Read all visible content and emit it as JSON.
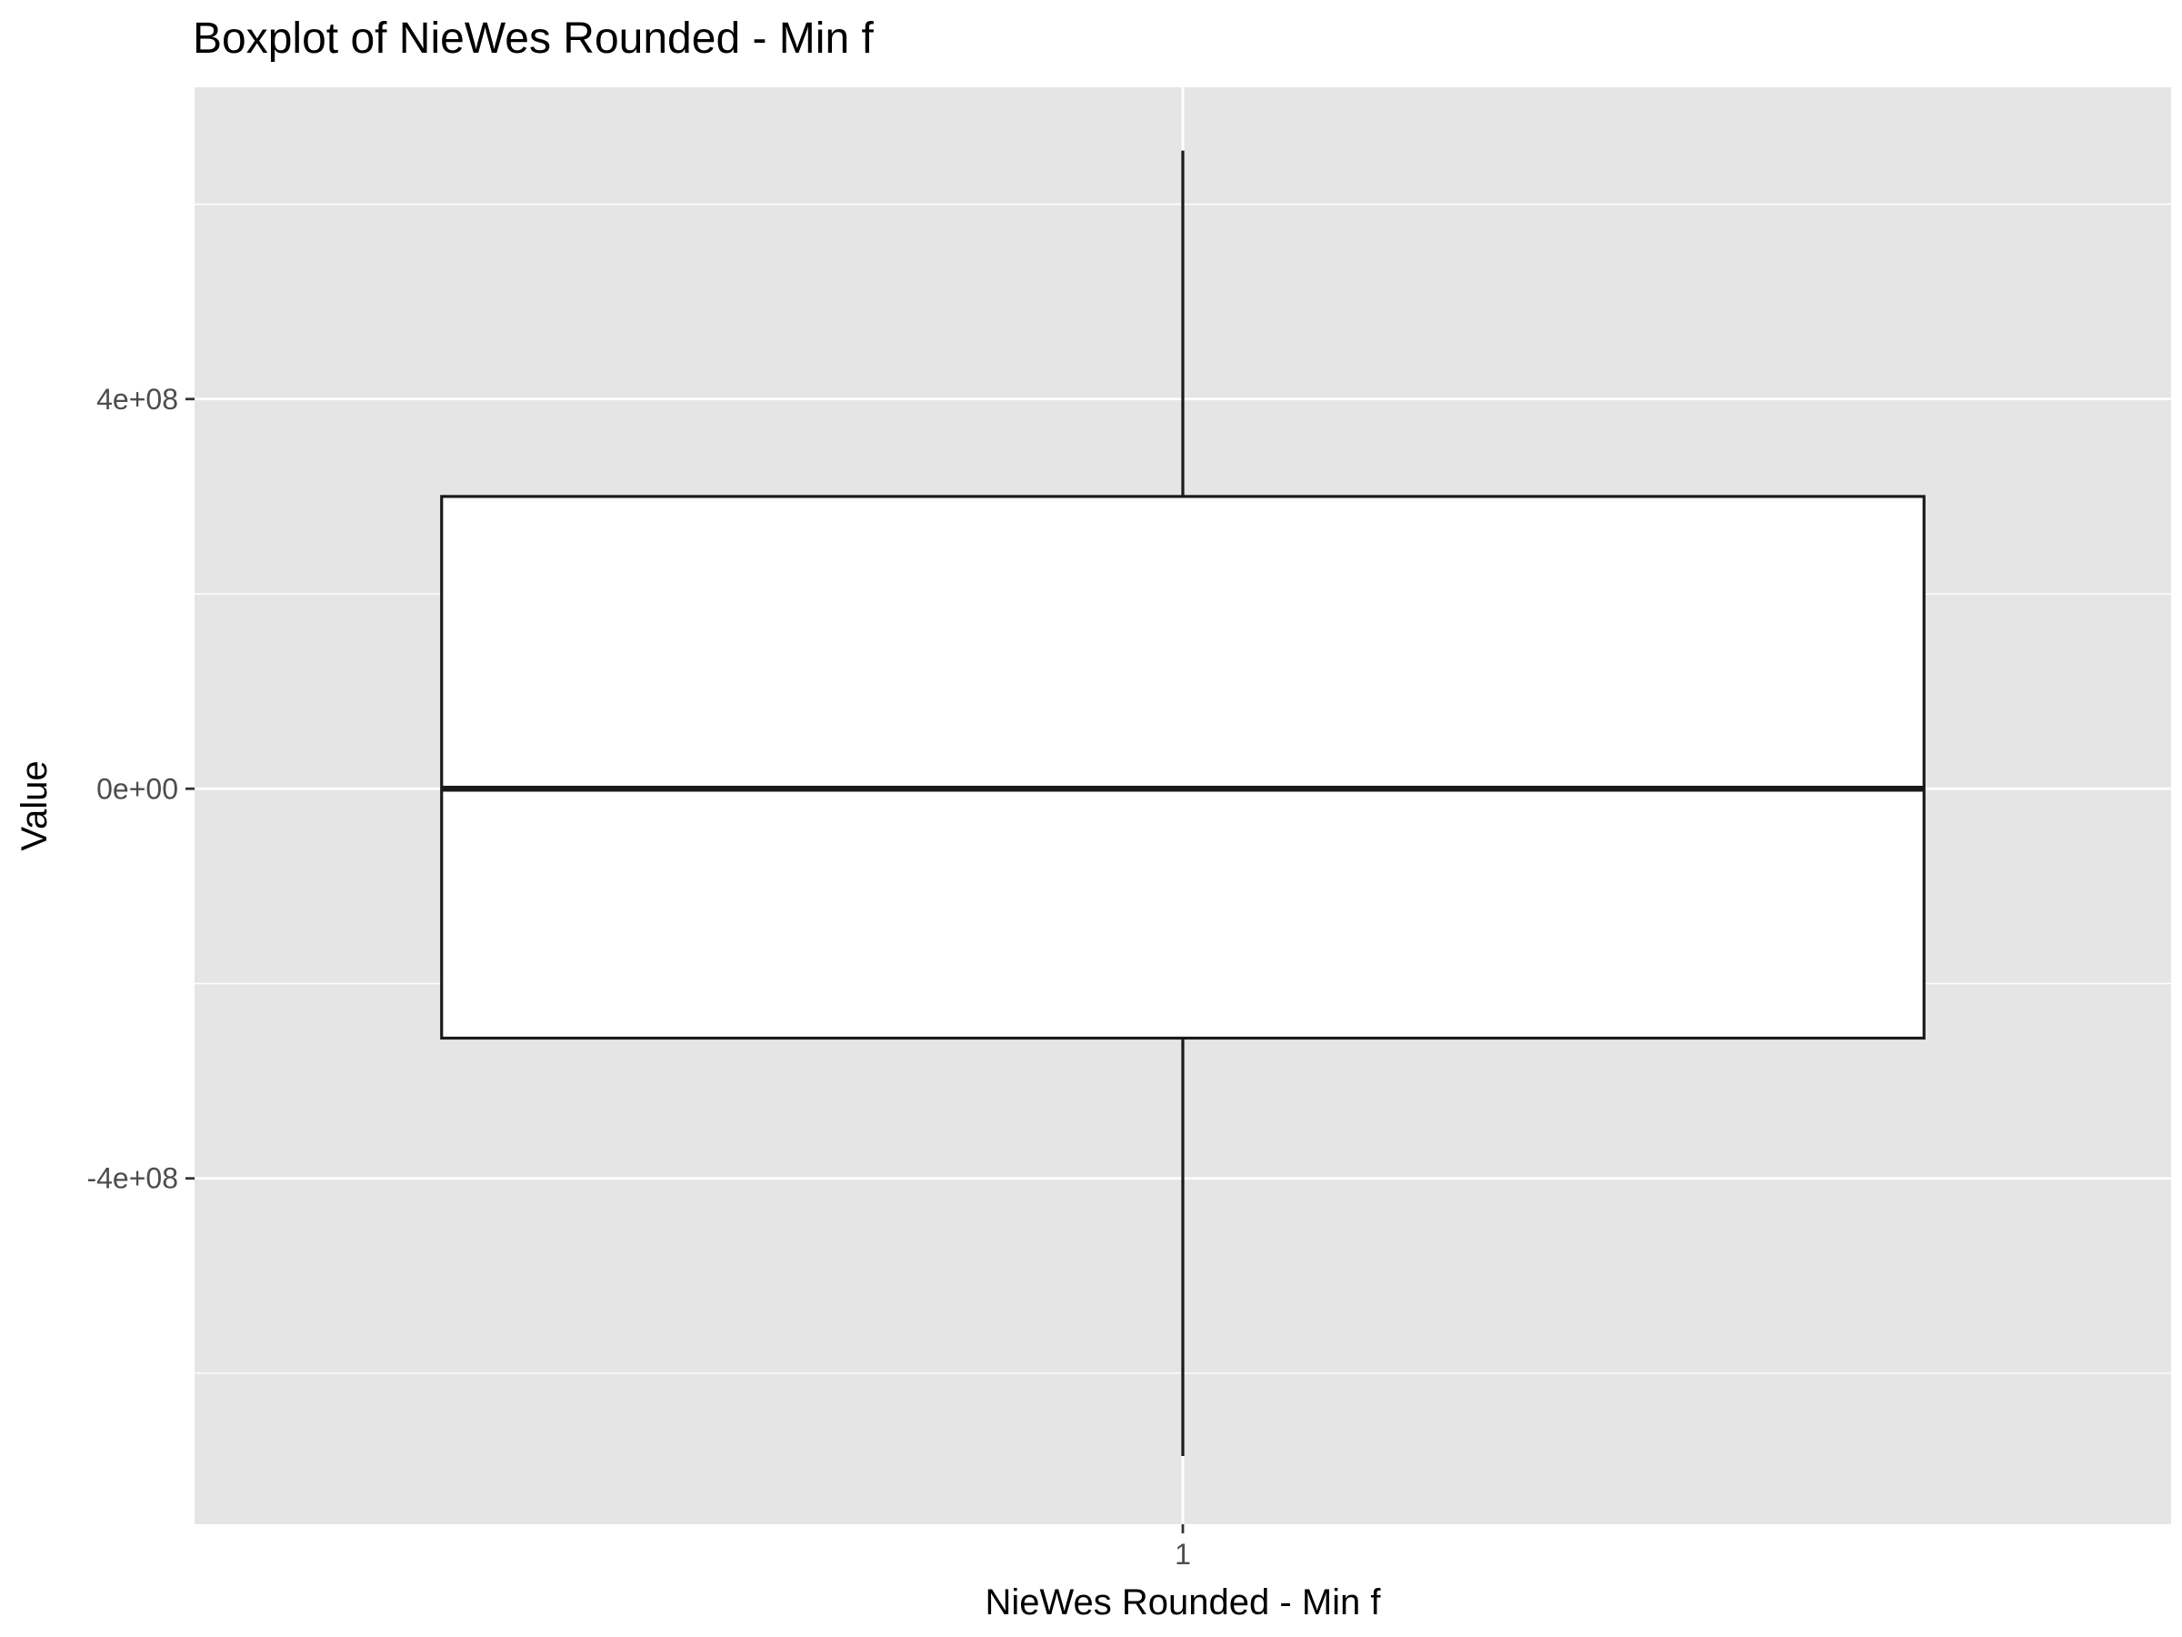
{
  "chart_data": {
    "type": "boxplot",
    "title": "Boxplot of NieWes Rounded - Min f",
    "xlabel": "NieWes Rounded - Min f",
    "ylabel": "Value",
    "categories": [
      "1"
    ],
    "boxes": [
      {
        "category": "1",
        "whisker_low": -685000000,
        "q1": -256000000,
        "median": 0,
        "q3": 300000000,
        "whisker_high": 655000000
      }
    ],
    "ylim": [
      -755000000,
      720000000
    ],
    "yticks": [
      {
        "value": -400000000,
        "label": "-4e+08"
      },
      {
        "value": 0,
        "label": "0e+00"
      },
      {
        "value": 400000000,
        "label": "4e+08"
      }
    ],
    "yminor": [
      -600000000,
      -200000000,
      200000000,
      600000000
    ],
    "grid": true,
    "legend": "none",
    "colors": {
      "panel": "#e5e5e5",
      "grid": "#ffffff",
      "box_fill": "#ffffff",
      "box_line": "#1a1a1a",
      "tick": "#333333",
      "tick_label": "#4d4d4d"
    }
  }
}
